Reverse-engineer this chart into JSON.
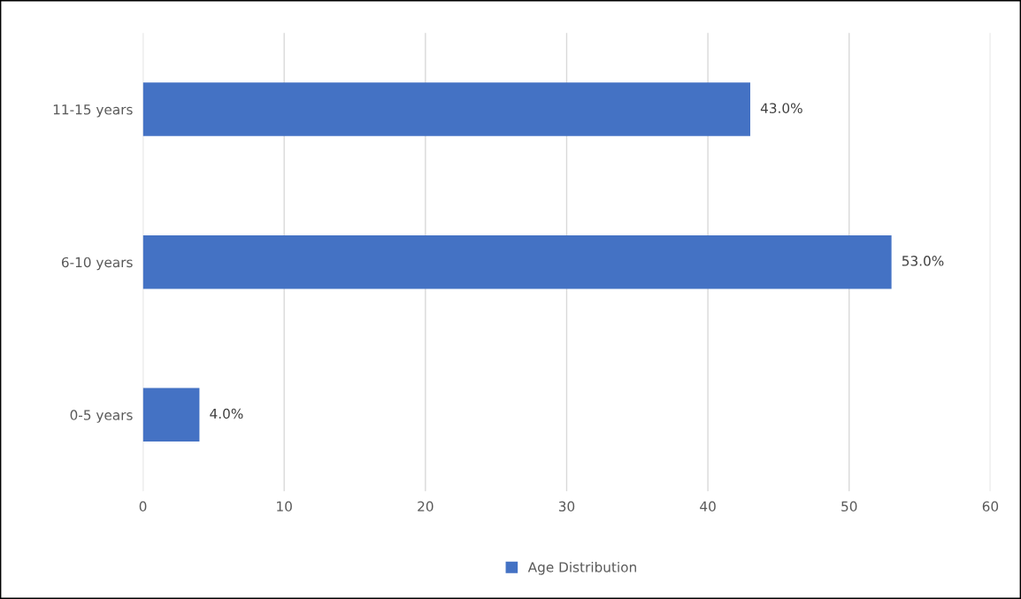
{
  "chart_data": {
    "type": "bar",
    "orientation": "horizontal",
    "categories": [
      "11-15 years",
      "6-10 years",
      "0-5 years"
    ],
    "series": [
      {
        "name": "Age Distribution",
        "color": "#4472c4",
        "values": [
          43,
          53,
          4
        ],
        "value_labels": [
          "43.0%",
          "53.0%",
          "4.0%"
        ]
      }
    ],
    "xlim": [
      0,
      60
    ],
    "xticks": [
      0,
      10,
      20,
      30,
      40,
      50,
      60
    ],
    "grid": "x",
    "legend": "bottom"
  }
}
